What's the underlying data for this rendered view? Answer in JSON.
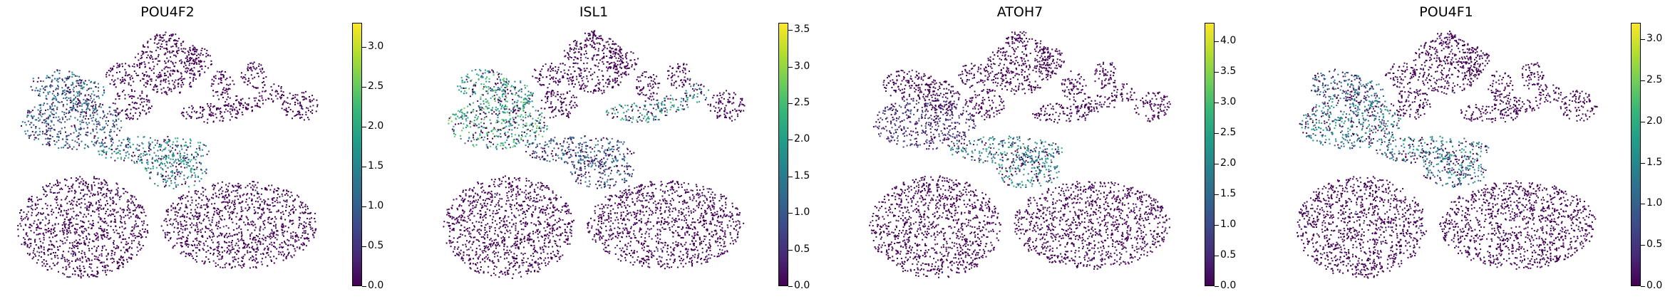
{
  "figure": {
    "colormap": "viridis",
    "viridis_stops": [
      "#440154",
      "#482878",
      "#3e4989",
      "#31688e",
      "#26828e",
      "#1f9e89",
      "#35b779",
      "#6ece58",
      "#b5de2b",
      "#fde725"
    ],
    "background_point_color": "#440154"
  },
  "chart_data": [
    {
      "type": "scatter",
      "title": "POU4F2",
      "colorbar": {
        "min": 0.0,
        "max": 3.3,
        "ticks": [
          "0.0",
          "0.5",
          "1.0",
          "1.5",
          "2.0",
          "2.5",
          "3.0"
        ],
        "tick_values": [
          0,
          0.5,
          1,
          1.5,
          2,
          2.5,
          3
        ]
      },
      "highlight": [
        {
          "region": "upper-left lobe",
          "level": 1.4
        },
        {
          "region": "left lobe",
          "level": 1.2
        },
        {
          "region": "center bridge",
          "level": 1.8
        }
      ]
    },
    {
      "type": "scatter",
      "title": "ISL1",
      "colorbar": {
        "min": 0.0,
        "max": 3.6,
        "ticks": [
          "0.0",
          "0.5",
          "1.0",
          "1.5",
          "2.0",
          "2.5",
          "3.0",
          "3.5"
        ],
        "tick_values": [
          0,
          0.5,
          1,
          1.5,
          2,
          2.5,
          3,
          3.5
        ]
      },
      "highlight": [
        {
          "region": "upper-left lobe",
          "level": 2.2
        },
        {
          "region": "left lobe",
          "level": 2.4
        },
        {
          "region": "right arm",
          "level": 2.1
        },
        {
          "region": "center bridge",
          "level": 1.2
        }
      ]
    },
    {
      "type": "scatter",
      "title": "ATOH7",
      "colorbar": {
        "min": 0.0,
        "max": 4.3,
        "ticks": [
          "0.0",
          "0.5",
          "1.0",
          "1.5",
          "2.0",
          "2.5",
          "3.0",
          "3.5",
          "4.0"
        ],
        "tick_values": [
          0,
          0.5,
          1,
          1.5,
          2,
          2.5,
          3,
          3.5,
          4
        ]
      },
      "highlight": [
        {
          "region": "center bridge",
          "level": 2.3
        },
        {
          "region": "left lobe",
          "level": 0.8
        }
      ]
    },
    {
      "type": "scatter",
      "title": "POU4F1",
      "colorbar": {
        "min": 0.0,
        "max": 3.2,
        "ticks": [
          "0.0",
          "0.5",
          "1.0",
          "1.5",
          "2.0",
          "2.5",
          "3.0"
        ],
        "tick_values": [
          0,
          0.5,
          1,
          1.5,
          2,
          2.5,
          3
        ]
      },
      "highlight": [
        {
          "region": "upper-left lobe",
          "level": 1.3
        },
        {
          "region": "left lobe",
          "level": 1.5
        },
        {
          "region": "center bridge",
          "level": 1.6
        }
      ]
    }
  ]
}
